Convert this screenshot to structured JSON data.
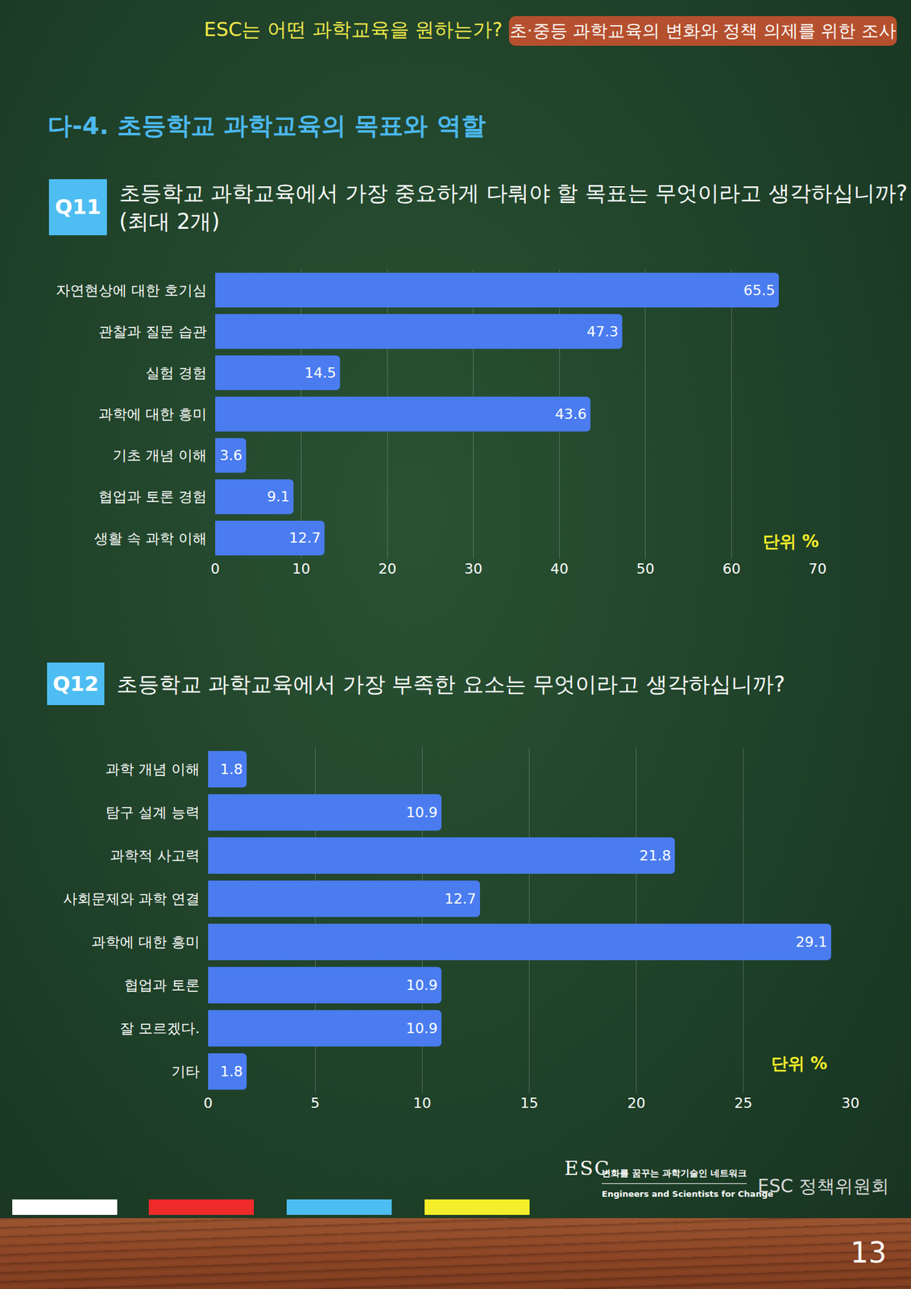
{
  "header": {
    "question": "ESC는 어떤 과학교육을 원하는가?",
    "survey": "초·중등 과학교육의 변화와 정책 의제를 위한 조사"
  },
  "section_title": "다-4. 초등학교 과학교육의 목표와 역할",
  "chart_data": [
    {
      "type": "bar",
      "label": "Q11",
      "title": "초등학교 과학교육에서 가장 중요하게 다뤄야 할 목표는 무엇이라고 생각하십니까?",
      "subtitle": "(최대 2개)",
      "orientation": "horizontal",
      "categories": [
        "자연현상에 대한 호기심",
        "관찰과 질문 습관",
        "실험 경험",
        "과학에 대한 흥미",
        "기초 개념 이해",
        "협업과 토론 경험",
        "생활 속 과학 이해"
      ],
      "values": [
        65.5,
        47.3,
        14.5,
        43.6,
        3.6,
        9.1,
        12.7
      ],
      "color": "#4a7cf0",
      "xlim": [
        0,
        70
      ],
      "xticks": [
        0,
        10,
        20,
        30,
        40,
        50,
        60,
        70
      ],
      "grid": true,
      "data_labels": true,
      "annotations": [
        "단위 %"
      ]
    },
    {
      "type": "bar",
      "label": "Q12",
      "title": "초등학교 과학교육에서 가장 부족한 요소는 무엇이라고 생각하십니까?",
      "orientation": "horizontal",
      "categories": [
        "과학 개념 이해",
        "탐구 설계 능력",
        "과학적 사고력",
        "사회문제와 과학 연결",
        "과학에 대한 흥미",
        "협업과 토론",
        "잘 모르겠다.",
        "기타"
      ],
      "values": [
        1.8,
        10.9,
        21.8,
        12.7,
        29.1,
        10.9,
        10.9,
        1.8
      ],
      "color": "#4a7cf0",
      "xlim": [
        0,
        30
      ],
      "xticks": [
        0,
        5,
        10,
        15,
        20,
        25,
        30
      ],
      "grid": true,
      "data_labels": true,
      "annotations": [
        "단위 %"
      ]
    }
  ],
  "footer": {
    "logo": "ESC",
    "logo_line1": "변화를 꿈꾸는 과학기술인 네트워크",
    "logo_line2": "Engineers and Scientists for Change",
    "committee": "ESC 정책위원회",
    "page_number": "13"
  }
}
